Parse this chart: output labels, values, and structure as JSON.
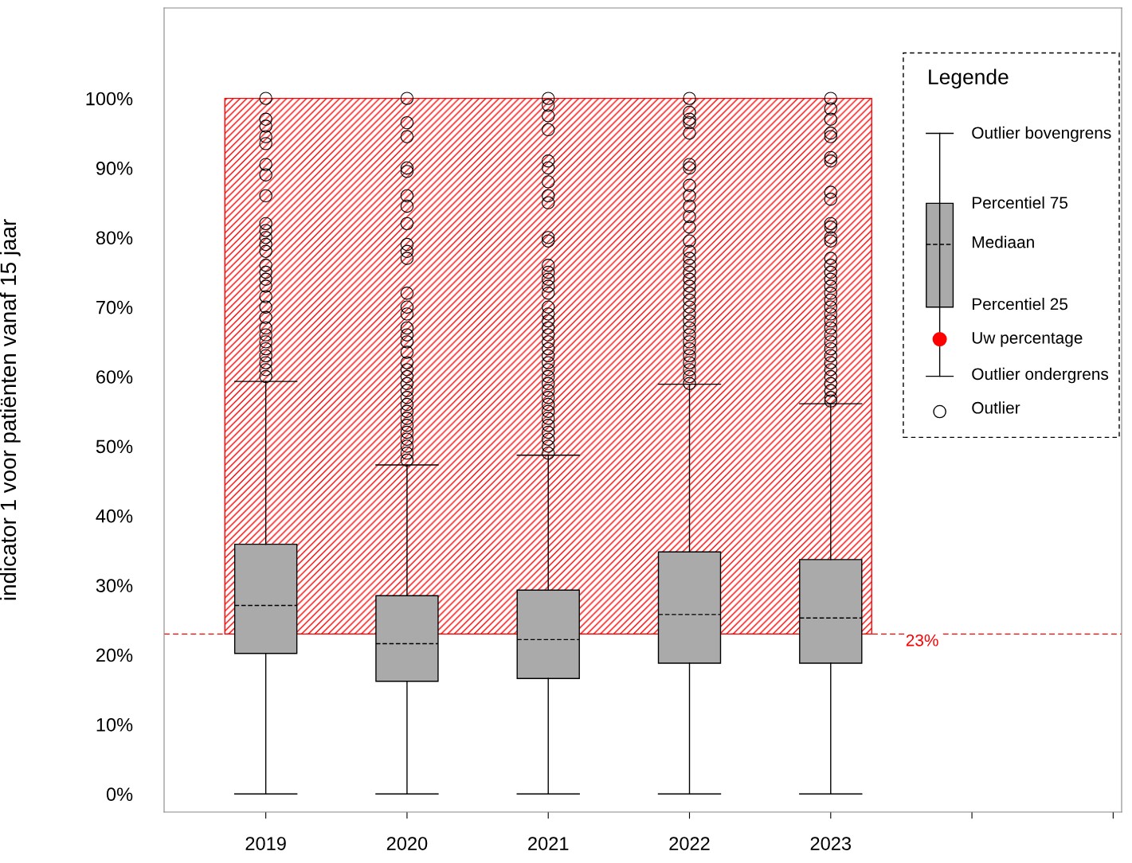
{
  "chart_data": {
    "type": "box",
    "ylabel": "indicator 1 voor patiënten vanaf 15 jaar",
    "categories": [
      "2019",
      "2020",
      "2021",
      "2022",
      "2023",
      null,
      null
    ],
    "boxes": [
      {
        "low": 0,
        "q1": 20.2,
        "median": 27.1,
        "q3": 35.9,
        "high": 59.3,
        "outliers": [
          100,
          97,
          96,
          94.5,
          93.5,
          90.5,
          89,
          86,
          82,
          81,
          80,
          79,
          78,
          76,
          75,
          74,
          73,
          71.5,
          70,
          68.5,
          67,
          66,
          65,
          64,
          63,
          62,
          61,
          60
        ]
      },
      {
        "low": 0,
        "q1": 16.2,
        "median": 21.6,
        "q3": 28.5,
        "high": 47.3,
        "outliers": [
          100,
          96.5,
          94.5,
          90,
          89.5,
          86,
          84.5,
          82,
          79,
          78,
          77,
          72,
          70,
          69,
          67,
          66,
          65,
          63.5,
          62,
          61,
          60,
          59,
          58,
          57,
          56,
          55,
          54,
          53,
          52,
          51,
          50,
          49,
          48
        ]
      },
      {
        "low": 0,
        "q1": 16.6,
        "median": 22.2,
        "q3": 29.3,
        "high": 48.7,
        "outliers": [
          100,
          99,
          97.5,
          95.5,
          91,
          90,
          88,
          86,
          85,
          80,
          79.5,
          76,
          75,
          74,
          73,
          72,
          70,
          69,
          68,
          67,
          66,
          65,
          64,
          63,
          62,
          61,
          60,
          59,
          58,
          57,
          56,
          55,
          54,
          53,
          52,
          51,
          50,
          49
        ]
      },
      {
        "low": 0,
        "q1": 18.8,
        "median": 25.8,
        "q3": 34.8,
        "high": 58.9,
        "outliers": [
          100,
          98,
          97,
          96.5,
          95,
          90.5,
          90,
          87.5,
          86,
          84.5,
          83,
          81.5,
          79.5,
          78,
          77,
          76,
          75,
          74,
          73,
          72,
          71,
          70,
          69,
          68,
          67,
          66,
          65,
          64,
          63,
          62,
          61,
          60,
          59
        ]
      },
      {
        "low": 0,
        "q1": 18.8,
        "median": 25.3,
        "q3": 33.7,
        "high": 56.1,
        "outliers": [
          100,
          98.5,
          97,
          95,
          94.5,
          91.5,
          91,
          86.5,
          85.5,
          82,
          81.5,
          80,
          79.5,
          77,
          76,
          75,
          74,
          73,
          72,
          71,
          70,
          69,
          68,
          67,
          66,
          65,
          64,
          63,
          62,
          61,
          60,
          59,
          58,
          57,
          56.5
        ]
      },
      null,
      null
    ],
    "color": "#aaaaaa",
    "ylim": [
      -2.6,
      113
    ],
    "yticks": [
      {
        "value": 0,
        "label": "0%"
      },
      {
        "value": 10,
        "label": "10%"
      },
      {
        "value": 20,
        "label": "20%"
      },
      {
        "value": 30,
        "label": "30%"
      },
      {
        "value": 40,
        "label": "40%"
      },
      {
        "value": 50,
        "label": "50%"
      },
      {
        "value": 60,
        "label": "60%"
      },
      {
        "value": 70,
        "label": "70%"
      },
      {
        "value": 80,
        "label": "80%"
      },
      {
        "value": 90,
        "label": "90%"
      },
      {
        "value": 100,
        "label": "100%"
      }
    ],
    "ref_lines": [
      {
        "axis": "y",
        "value": 23,
        "label": "23%",
        "color": "#ff0000",
        "line_style": "dashed"
      }
    ],
    "bands": [
      {
        "axis": "y",
        "from": 23,
        "to": 100,
        "color": "#ff0000"
      }
    ],
    "legend": "right",
    "legend_title": "Legende",
    "annotations": [
      "Outlier bovengrens",
      "Percentiel 75",
      "Mediaan",
      "Percentiel 25",
      "Uw percentage",
      "Outlier ondergrens",
      "Outlier"
    ],
    "grid": false
  }
}
